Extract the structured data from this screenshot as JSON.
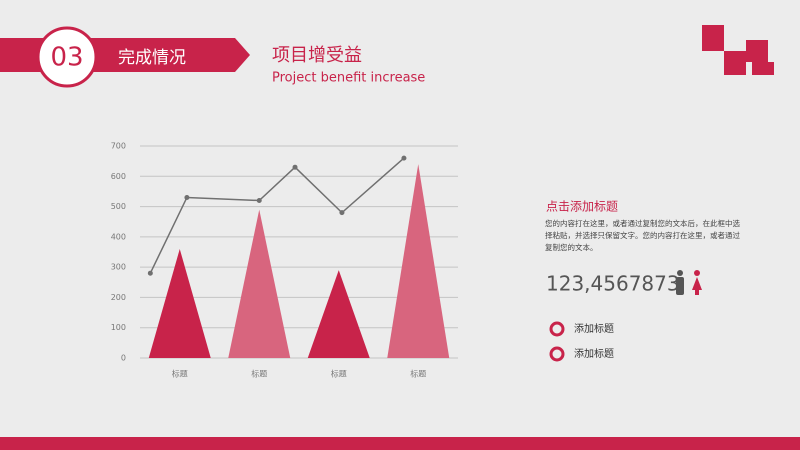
{
  "header": {
    "number": "03",
    "section": "完成情况",
    "title": "项目增受益",
    "subtitle": "Project benefit increase"
  },
  "chart_data": {
    "type": "bar",
    "categories": [
      "标题",
      "标题",
      "标题",
      "标题"
    ],
    "ylim": [
      0,
      700
    ],
    "yticks": [
      0,
      100,
      200,
      300,
      400,
      500,
      600,
      700
    ],
    "grid": true,
    "series": [
      {
        "type": "bar",
        "values": [
          360,
          490,
          290,
          640
        ],
        "colors": [
          "#c8234a",
          "#d8657e",
          "#c8234a",
          "#d8657e"
        ]
      },
      {
        "type": "line",
        "color": "#707070",
        "x": [
          0.13,
          0.59,
          1.5,
          1.95,
          2.54,
          3.32
        ],
        "values": [
          280,
          530,
          520,
          630,
          480,
          660
        ]
      }
    ]
  },
  "panel": {
    "title": "点击添加标题",
    "body": "您的内容打在这里，或者通过复制您的文本后，在此框中选择粘贴，并选择只保留文字。您的内容打在这里，或者通过复制您的文本。",
    "stat": "123,4567873",
    "items": [
      "添加标题",
      "添加标题"
    ]
  }
}
